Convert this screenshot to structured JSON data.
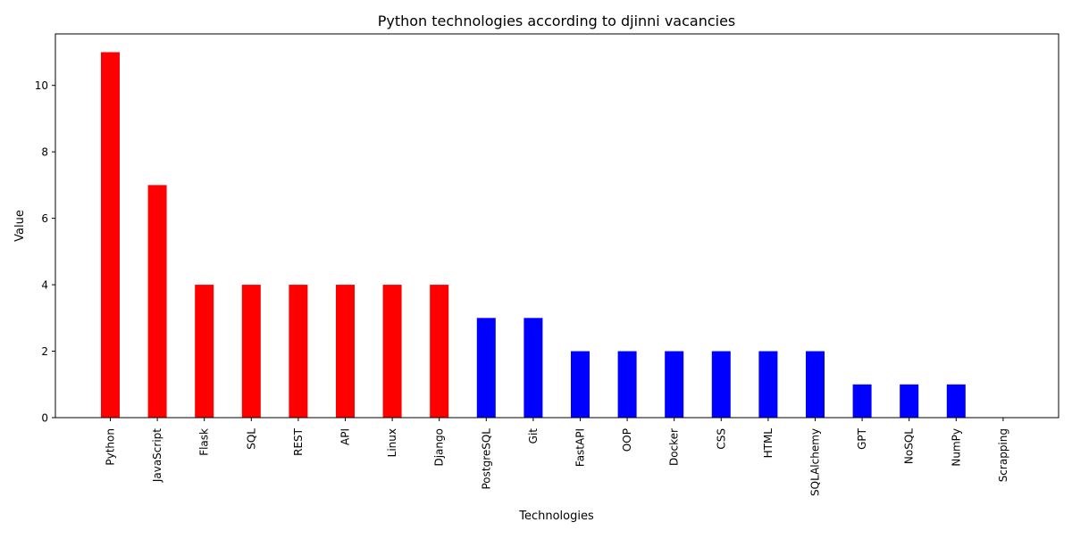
{
  "chart_data": {
    "type": "bar",
    "title": "Python technologies according to djinni vacancies",
    "xlabel": "Technologies",
    "ylabel": "Value",
    "ylim": [
      0,
      11.55
    ],
    "yticks": [
      0,
      2,
      4,
      6,
      8,
      10
    ],
    "grid": false,
    "categories": [
      "Python",
      "JavaScript",
      "Flask",
      "SQL",
      "REST",
      "API",
      "Linux",
      "Django",
      "PostgreSQL",
      "Git",
      "FastAPI",
      "OOP",
      "Docker",
      "CSS",
      "HTML",
      "SQLAlchemy",
      "GPT",
      "NoSQL",
      "NumPy",
      "Scrapping"
    ],
    "values": [
      11,
      7,
      4,
      4,
      4,
      4,
      4,
      4,
      3,
      3,
      2,
      2,
      2,
      2,
      2,
      2,
      1,
      1,
      1,
      0
    ],
    "bar_colors": [
      "#ff0000",
      "#ff0000",
      "#ff0000",
      "#ff0000",
      "#ff0000",
      "#ff0000",
      "#ff0000",
      "#ff0000",
      "#0000ff",
      "#0000ff",
      "#0000ff",
      "#0000ff",
      "#0000ff",
      "#0000ff",
      "#0000ff",
      "#0000ff",
      "#0000ff",
      "#0000ff",
      "#0000ff",
      "#0000ff"
    ]
  }
}
